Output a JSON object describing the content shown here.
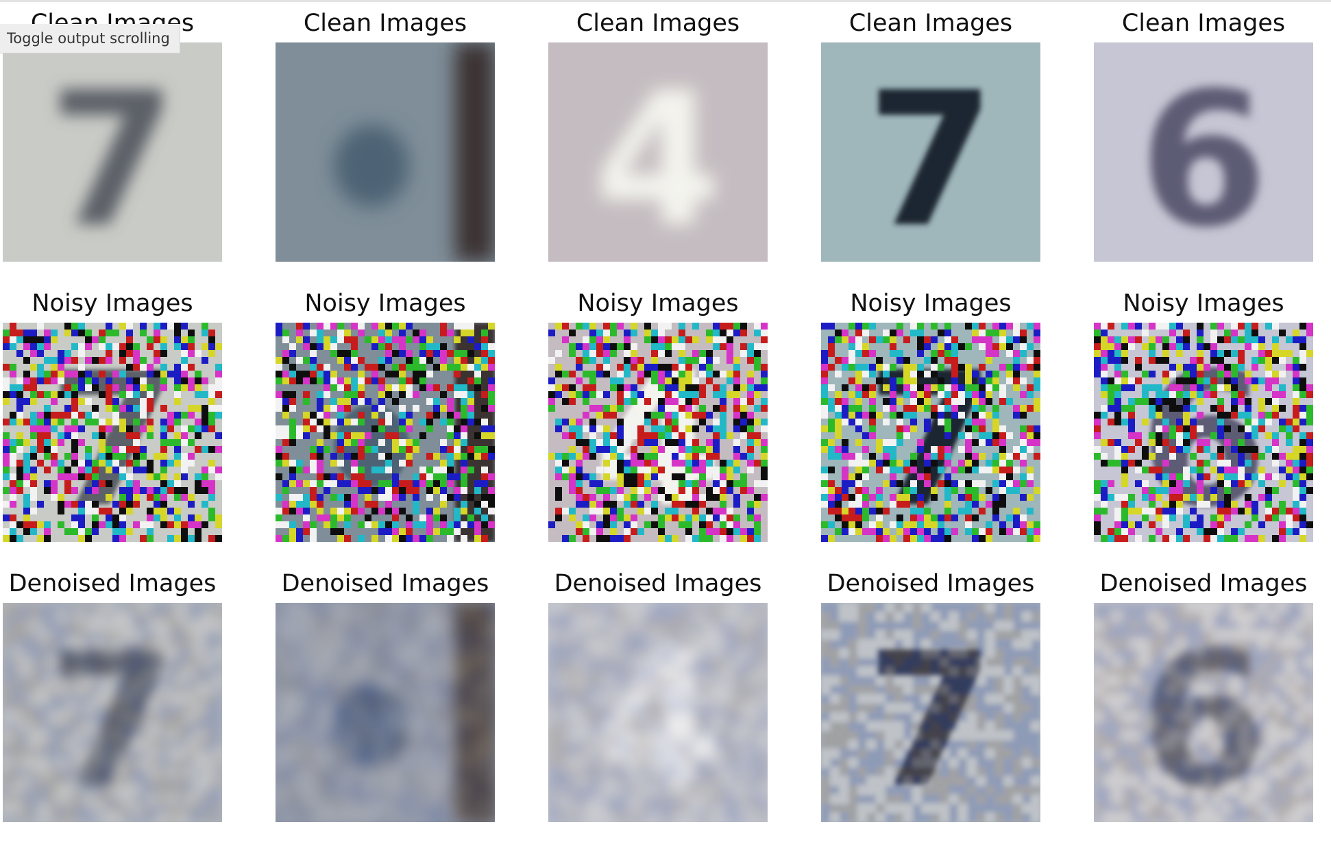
{
  "tooltip": "Toggle output scrolling",
  "rows": [
    {
      "key": "clean",
      "title": "Clean Images",
      "images": [
        {
          "background": "#c9cbc6",
          "digit": "7",
          "digit_color": "#5c6168",
          "blur": 11,
          "variant": "clean"
        },
        {
          "background": "#7f8e99",
          "digit": "",
          "digit_color": "#4d6374",
          "blur": 14,
          "variant": "clean",
          "dark_edge": "#3a3033"
        },
        {
          "background": "#c4bcc0",
          "digit": "4",
          "digit_color": "#f4f4ee",
          "blur": 13,
          "variant": "clean"
        },
        {
          "background": "#9fb6bb",
          "digit": "7",
          "digit_color": "#1d2730",
          "blur": 4,
          "variant": "clean"
        },
        {
          "background": "#c6c6d4",
          "digit": "6",
          "digit_color": "#5d5c74",
          "blur": 7,
          "variant": "clean"
        }
      ]
    },
    {
      "key": "noisy",
      "title": "Noisy Images",
      "images": [
        {
          "background": "#c9cbc6",
          "digit": "7",
          "digit_color": "#5c6168",
          "variant": "noisy"
        },
        {
          "background": "#7f8e99",
          "digit": "",
          "digit_color": "#4d6374",
          "variant": "noisy",
          "dark_edge": "#3a3033"
        },
        {
          "background": "#c4bcc0",
          "digit": "4",
          "digit_color": "#f4f4ee",
          "variant": "noisy"
        },
        {
          "background": "#9fb6bb",
          "digit": "7",
          "digit_color": "#1d2730",
          "variant": "noisy"
        },
        {
          "background": "#c6c6d4",
          "digit": "6",
          "digit_color": "#5d5c74",
          "variant": "noisy"
        }
      ]
    },
    {
      "key": "denoised",
      "title": "Denoised Images",
      "images": [
        {
          "background": "#b4b8bc",
          "digit": "7",
          "digit_color": "#4e5563",
          "blur": 9,
          "variant": "denoised"
        },
        {
          "background": "#8e96a6",
          "digit": "",
          "digit_color": "#465a7c",
          "blur": 12,
          "variant": "denoised",
          "dark_edge": "#3f342e"
        },
        {
          "background": "#bfc2cb",
          "digit": "4",
          "digit_color": "#e9ebf1",
          "blur": 10,
          "variant": "denoised"
        },
        {
          "background": "#aab2bd",
          "digit": "7",
          "digit_color": "#252b3d",
          "blur": 4,
          "variant": "denoised"
        },
        {
          "background": "#c3c3c9",
          "digit": "6",
          "digit_color": "#5a5d6e",
          "blur": 7,
          "variant": "denoised"
        }
      ]
    }
  ],
  "noise_palette": [
    "#d633c7",
    "#22b8c8",
    "#d6d629",
    "#1c1cc4",
    "#2cba2c",
    "#c61c1c",
    "#0e0e0e",
    "#f2f2f2"
  ]
}
